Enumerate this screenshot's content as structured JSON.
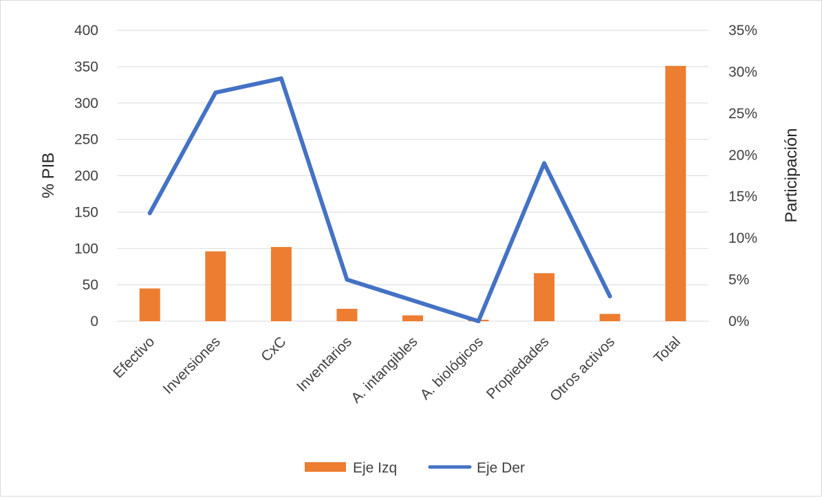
{
  "chart_data": {
    "type": "bar+line",
    "categories": [
      "Efectivo",
      "Inversiones",
      "CxC",
      "Inventarios",
      "A. intangibles",
      "A. biológicos",
      "Propiedades",
      "Otros activos",
      "Total"
    ],
    "series": [
      {
        "name": "Eje Izq",
        "type": "bar",
        "axis": "left",
        "color": "#ED7D31",
        "values": [
          45,
          96,
          102,
          17,
          8,
          2,
          66,
          10,
          351
        ]
      },
      {
        "name": "Eje Der",
        "type": "line",
        "axis": "right",
        "color": "#4472C4",
        "values": [
          0.13,
          0.275,
          0.292,
          0.05,
          0.025,
          0.0,
          0.19,
          0.03,
          null
        ]
      }
    ],
    "ylabel_left": "% PIB",
    "ylabel_right": "Participación",
    "ylim_left": [
      0,
      400
    ],
    "ylim_right": [
      0,
      0.35
    ],
    "yticks_left": [
      "0",
      "50",
      "100",
      "150",
      "200",
      "250",
      "300",
      "350",
      "400"
    ],
    "yticks_right": [
      "0%",
      "5%",
      "10%",
      "15%",
      "20%",
      "25%",
      "30%",
      "35%"
    ],
    "grid": true,
    "legend_position": "bottom"
  }
}
